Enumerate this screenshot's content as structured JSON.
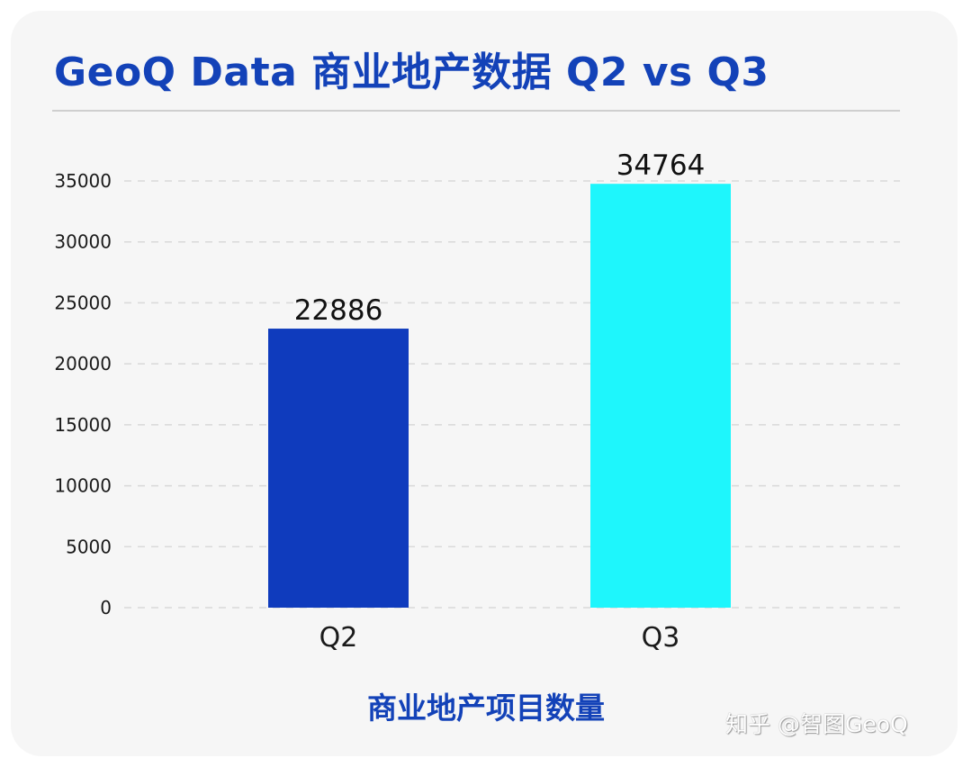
{
  "title": "GeoQ Data 商业地产数据 Q2 vs Q3",
  "watermark": "知乎 @智图GeoQ",
  "colors": {
    "title": "#1342b8",
    "grid": "#d9d9d9",
    "card_background": "#f6f6f6"
  },
  "chart_data": {
    "type": "bar",
    "categories": [
      "Q2",
      "Q3"
    ],
    "values": [
      22886,
      34764
    ],
    "bar_colors": [
      "#0f3bbd",
      "#1ef6fc"
    ],
    "show_data_labels": true,
    "title": "GeoQ Data 商业地产数据 Q2 vs Q3",
    "xlabel": "商业地产项目数量",
    "ylabel": "",
    "ylim": [
      0,
      35000
    ],
    "yticks": [
      0,
      5000,
      10000,
      15000,
      20000,
      25000,
      30000,
      35000
    ],
    "grid": true,
    "grid_style": "dashed",
    "legend": "none"
  }
}
